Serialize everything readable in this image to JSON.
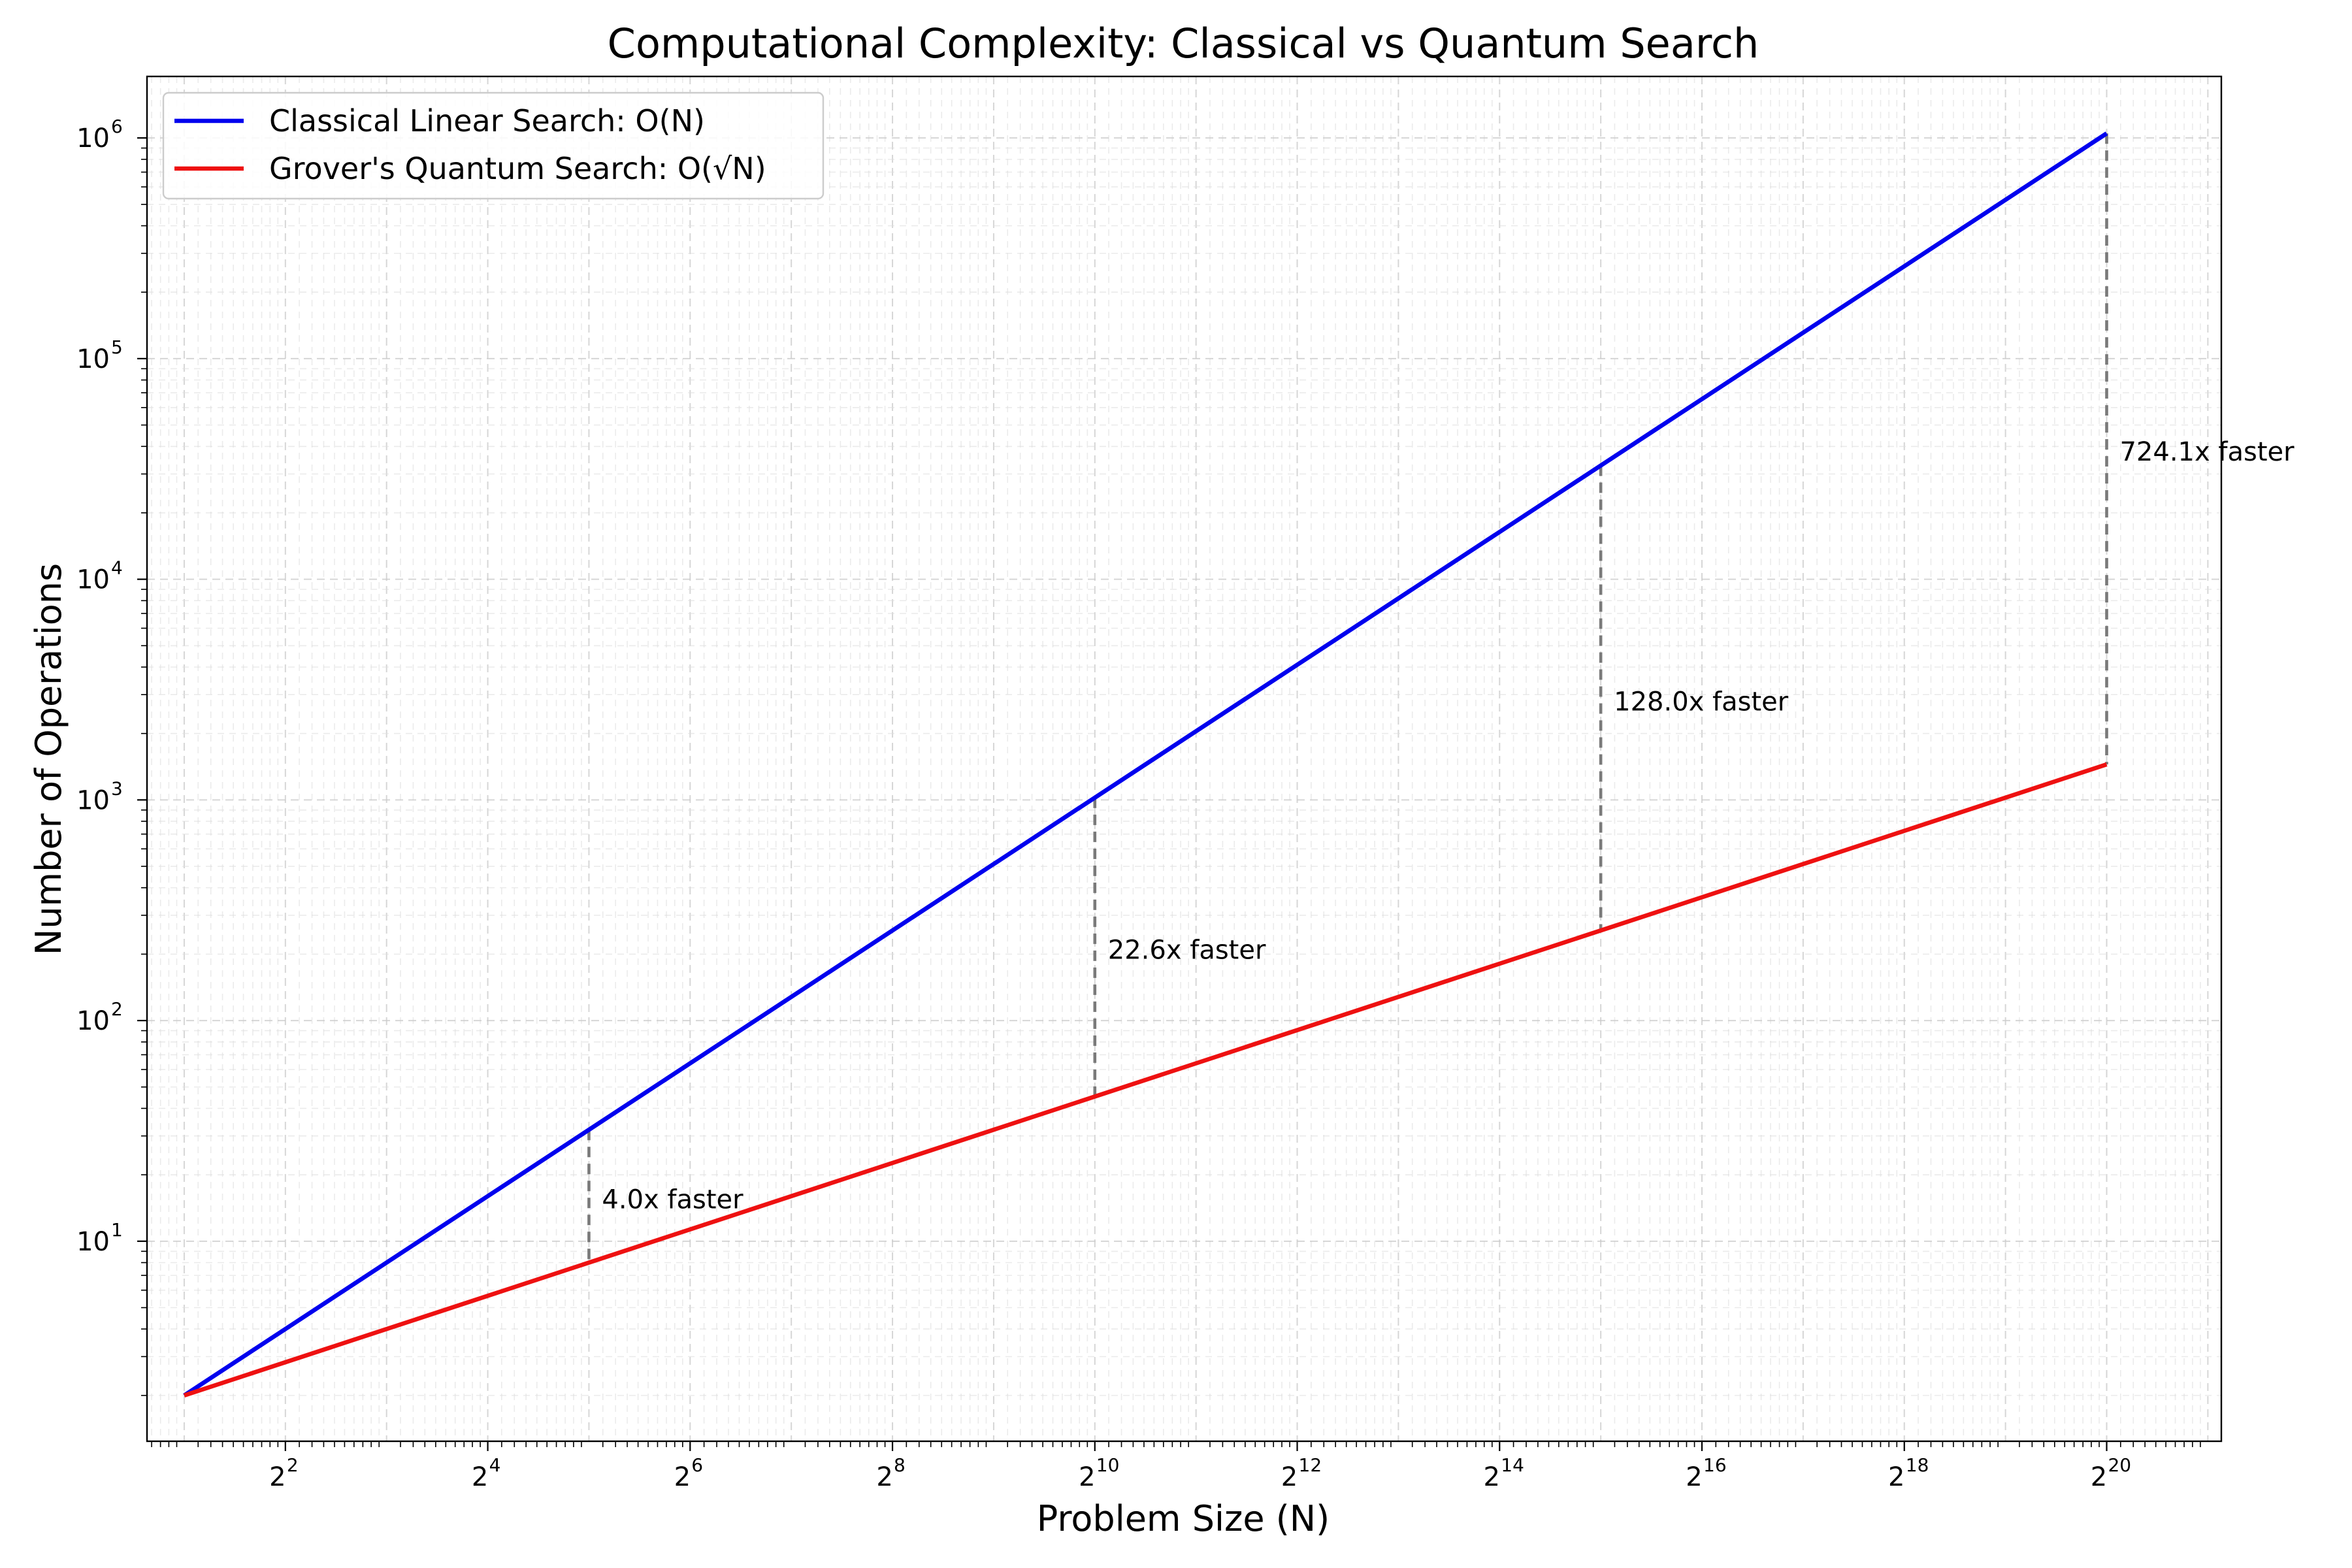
{
  "chart_data": {
    "type": "line",
    "title": "Computational Complexity: Classical vs Quantum Search",
    "xlabel": "Problem Size (N)",
    "ylabel": "Number of Operations",
    "x_scale": "log2",
    "y_scale": "log10",
    "xlim": [
      1.55,
      2300000
    ],
    "ylim": [
      1.24,
      1900000
    ],
    "grid": true,
    "legend_position": "top-left",
    "x_ticks": [
      {
        "value": 4,
        "base": "2",
        "exp": "2"
      },
      {
        "value": 16,
        "base": "2",
        "exp": "4"
      },
      {
        "value": 64,
        "base": "2",
        "exp": "6"
      },
      {
        "value": 256,
        "base": "2",
        "exp": "8"
      },
      {
        "value": 1024,
        "base": "2",
        "exp": "10"
      },
      {
        "value": 4096,
        "base": "2",
        "exp": "12"
      },
      {
        "value": 16384,
        "base": "2",
        "exp": "14"
      },
      {
        "value": 65536,
        "base": "2",
        "exp": "16"
      },
      {
        "value": 262144,
        "base": "2",
        "exp": "18"
      },
      {
        "value": 1048576,
        "base": "2",
        "exp": "20"
      }
    ],
    "y_ticks": [
      {
        "value": 10,
        "base": "10",
        "exp": "1"
      },
      {
        "value": 100,
        "base": "10",
        "exp": "2"
      },
      {
        "value": 1000,
        "base": "10",
        "exp": "3"
      },
      {
        "value": 10000,
        "base": "10",
        "exp": "4"
      },
      {
        "value": 100000,
        "base": "10",
        "exp": "5"
      },
      {
        "value": 1000000,
        "base": "10",
        "exp": "6"
      }
    ],
    "series": [
      {
        "name": "Classical Linear Search: O(N)",
        "color": "#0000ee",
        "x": [
          2,
          1048576
        ],
        "y": [
          2,
          1048576
        ]
      },
      {
        "name": "Grover's Quantum Search: O(√N)",
        "color": "#ee1111",
        "x": [
          2,
          1048576
        ],
        "y": [
          2,
          1448.2
        ]
      }
    ],
    "annotations": [
      {
        "x": 32,
        "y_low": 8,
        "y_high": 32,
        "label_y": 15.5,
        "text": "4.0x faster"
      },
      {
        "x": 1024,
        "y_low": 45.25,
        "y_high": 1024,
        "label_y": 210,
        "text": "22.6x faster"
      },
      {
        "x": 32768,
        "y_low": 256,
        "y_high": 32768,
        "label_y": 2800,
        "text": "128.0x faster"
      },
      {
        "x": 1048576,
        "y_low": 1448.2,
        "y_high": 1048576,
        "label_y": 38000,
        "text": "724.1x faster"
      }
    ]
  }
}
